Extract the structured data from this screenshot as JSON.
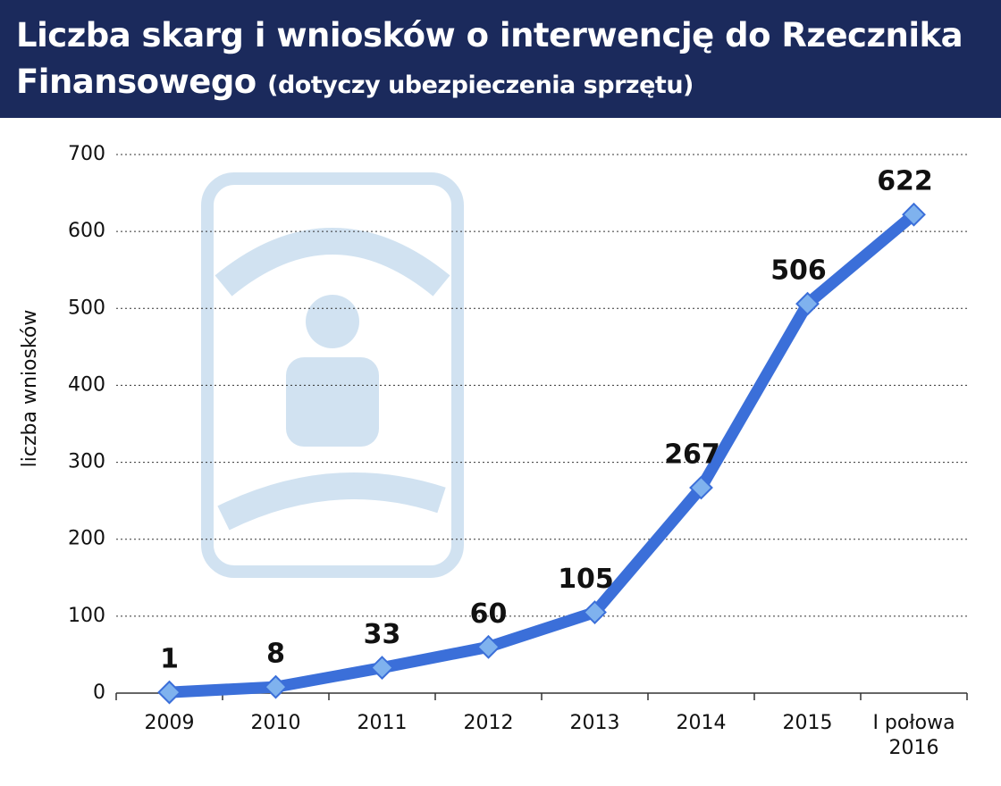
{
  "chart_data": {
    "type": "line",
    "title": "Liczba skarg i wniosków o interwencję do Rzecznika Finansowego",
    "subtitle": "(dotyczy ubezpieczenia sprzętu)",
    "y_label": "liczba wniosków",
    "categories": [
      "2009",
      "2010",
      "2011",
      "2012",
      "2013",
      "2014",
      "2015",
      "I połowa 2016"
    ],
    "values": [
      1,
      8,
      33,
      60,
      105,
      267,
      506,
      622
    ],
    "color": "#3b6fd9",
    "ylim": [
      0,
      700
    ],
    "yticks": [
      0,
      100,
      200,
      300,
      400,
      500,
      600,
      700
    ],
    "grid": true
  }
}
